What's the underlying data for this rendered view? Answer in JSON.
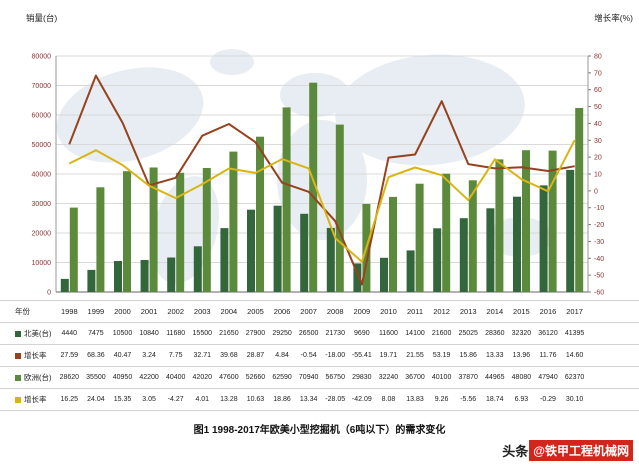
{
  "chart": {
    "left_axis_title": "销量(台)",
    "right_axis_title": "增长率(%)",
    "left_ticks": [
      0,
      10000,
      20000,
      30000,
      40000,
      50000,
      60000,
      70000,
      80000
    ],
    "right_ticks": [
      -60,
      -50,
      -40,
      -30,
      -20,
      -10,
      0,
      10,
      20,
      30,
      40,
      50,
      60,
      70,
      80
    ],
    "axis_label_color": "#8b3535",
    "grid_color": "#d9d9d9",
    "map_color": "#e7edf2"
  },
  "chart_data": {
    "type": "bar+line",
    "title": "图1 1998-2017年欧美小型挖掘机（6吨以下）的需求变化",
    "categories": [
      "1998",
      "1999",
      "2000",
      "2001",
      "2002",
      "2003",
      "2004",
      "2005",
      "2006",
      "2007",
      "2008",
      "2009",
      "2010",
      "2011",
      "2012",
      "2013",
      "2014",
      "2015",
      "2016",
      "2017"
    ],
    "left_ylabel": "销量(台)",
    "right_ylabel": "增长率(%)",
    "left_ylim": [
      0,
      80000
    ],
    "right_ylim": [
      -60,
      80
    ],
    "grid": true,
    "legend_position": "table-left",
    "series": [
      {
        "name": "北美(台)",
        "type": "bar",
        "axis": "left",
        "color": "#33663a",
        "values": [
          4440,
          7475,
          10500,
          10840,
          11680,
          15500,
          21650,
          27900,
          29250,
          26500,
          21730,
          9690,
          11600,
          14100,
          21600,
          25025,
          28360,
          32320,
          36120,
          41395
        ]
      },
      {
        "name": "北美增长率",
        "type": "line",
        "axis": "right",
        "color": "#96421e",
        "values": [
          27.59,
          68.36,
          40.47,
          3.24,
          7.75,
          32.71,
          39.68,
          28.87,
          4.84,
          -0.54,
          -18.0,
          -55.41,
          19.71,
          21.55,
          53.19,
          15.86,
          13.33,
          13.96,
          11.76,
          14.6
        ]
      },
      {
        "name": "欧洲(台)",
        "type": "bar",
        "axis": "left",
        "color": "#5c8a3c",
        "values": [
          28620,
          35500,
          40950,
          42200,
          40400,
          42020,
          47600,
          52660,
          62590,
          70940,
          56750,
          29830,
          32240,
          36700,
          40100,
          37870,
          44965,
          48080,
          47940,
          62370
        ]
      },
      {
        "name": "欧洲增长率",
        "type": "line",
        "axis": "right",
        "color": "#d9b513",
        "values": [
          16.25,
          24.04,
          15.35,
          3.05,
          -4.27,
          4.01,
          13.28,
          10.63,
          18.86,
          13.34,
          -28.05,
          -42.09,
          8.08,
          13.83,
          9.26,
          -5.56,
          18.74,
          6.93,
          -0.29,
          30.1
        ]
      }
    ]
  },
  "table": {
    "year_row_label": "年份",
    "years": [
      "1998",
      "1999",
      "2000",
      "2001",
      "2002",
      "2003",
      "2004",
      "2005",
      "2006",
      "2007",
      "2008",
      "2009",
      "2010",
      "2011",
      "2012",
      "2013",
      "2014",
      "2015",
      "2016",
      "2017"
    ],
    "rows": [
      {
        "label": "北美(台)",
        "swatch": "#33663a",
        "values": [
          "4440",
          "7475",
          "10500",
          "10840",
          "11680",
          "15500",
          "21650",
          "27900",
          "29250",
          "26500",
          "21730",
          "9690",
          "11600",
          "14100",
          "21600",
          "25025",
          "28360",
          "32320",
          "36120",
          "41395"
        ]
      },
      {
        "label": "增长率",
        "swatch": "#96421e",
        "values": [
          "27.59",
          "68.36",
          "40.47",
          "3.24",
          "7.75",
          "32.71",
          "39.68",
          "28.87",
          "4.84",
          "-0.54",
          "-18.00",
          "-55.41",
          "19.71",
          "21.55",
          "53.19",
          "15.86",
          "13.33",
          "13.96",
          "11.76",
          "14.60"
        ]
      },
      {
        "label": "欧洲(台)",
        "swatch": "#5c8a3c",
        "values": [
          "28620",
          "35500",
          "40950",
          "42200",
          "40400",
          "42020",
          "47600",
          "52660",
          "62590",
          "70940",
          "56750",
          "29830",
          "32240",
          "36700",
          "40100",
          "37870",
          "44965",
          "48080",
          "47940",
          "62370"
        ]
      },
      {
        "label": "增长率",
        "swatch": "#d9b513",
        "values": [
          "16.25",
          "24.04",
          "15.35",
          "3.05",
          "-4.27",
          "4.01",
          "13.28",
          "10.63",
          "18.86",
          "13.34",
          "-28.05",
          "-42.09",
          "8.08",
          "13.83",
          "9.26",
          "-5.56",
          "18.74",
          "6.93",
          "-0.29",
          "30.10"
        ]
      }
    ]
  },
  "caption": "图1 1998-2017年欧美小型挖掘机（6吨以下）的需求变化",
  "watermark": {
    "prefix": "头条",
    "badge": "@铁甲工程机械网",
    "badge_color": "#d2261c"
  }
}
